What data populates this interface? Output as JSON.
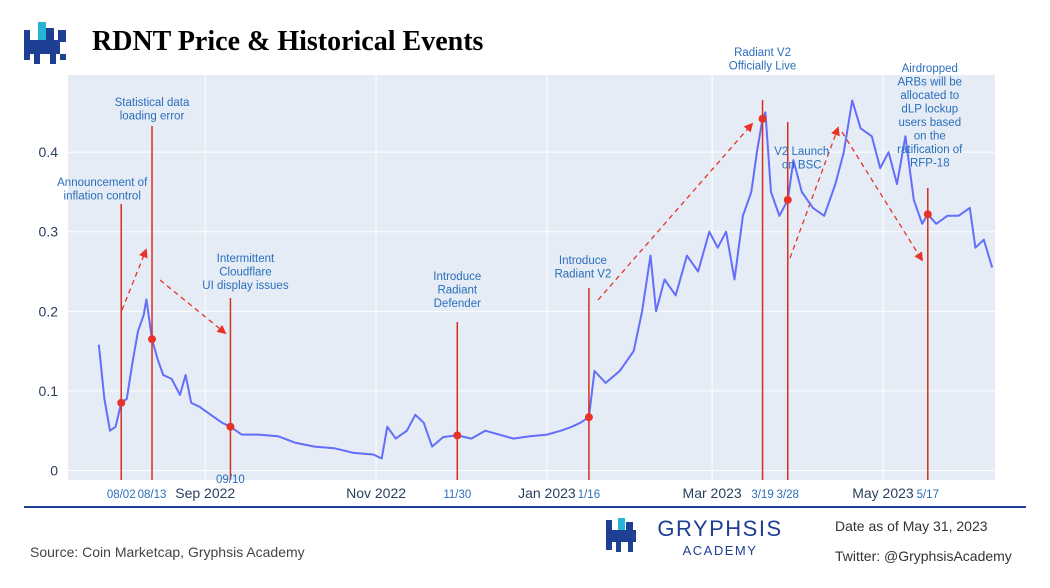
{
  "chart_data": {
    "type": "line",
    "title": "RDNT Price & Historical Events",
    "color": "#636efa",
    "x": [
      "2022-07-25",
      "2022-07-27",
      "2022-07-29",
      "2022-07-31",
      "2022-08-02",
      "2022-08-04",
      "2022-08-06",
      "2022-08-08",
      "2022-08-10",
      "2022-08-11",
      "2022-08-13",
      "2022-08-15",
      "2022-08-17",
      "2022-08-20",
      "2022-08-23",
      "2022-08-25",
      "2022-08-27",
      "2022-08-30",
      "2022-09-03",
      "2022-09-07",
      "2022-09-10",
      "2022-09-14",
      "2022-09-20",
      "2022-09-27",
      "2022-10-03",
      "2022-10-10",
      "2022-10-17",
      "2022-10-24",
      "2022-10-31",
      "2022-11-03",
      "2022-11-05",
      "2022-11-08",
      "2022-11-12",
      "2022-11-15",
      "2022-11-18",
      "2022-11-21",
      "2022-11-25",
      "2022-11-30",
      "2022-12-05",
      "2022-12-10",
      "2022-12-15",
      "2022-12-20",
      "2022-12-26",
      "2023-01-01",
      "2023-01-06",
      "2023-01-10",
      "2023-01-13",
      "2023-01-16",
      "2023-01-18",
      "2023-01-22",
      "2023-01-27",
      "2023-02-01",
      "2023-02-04",
      "2023-02-07",
      "2023-02-09",
      "2023-02-12",
      "2023-02-16",
      "2023-02-20",
      "2023-02-24",
      "2023-02-28",
      "2023-03-03",
      "2023-03-06",
      "2023-03-09",
      "2023-03-12",
      "2023-03-15",
      "2023-03-17",
      "2023-03-19",
      "2023-03-20",
      "2023-03-22",
      "2023-03-25",
      "2023-03-28",
      "2023-03-30",
      "2023-04-02",
      "2023-04-06",
      "2023-04-10",
      "2023-04-14",
      "2023-04-17",
      "2023-04-20",
      "2023-04-23",
      "2023-04-27",
      "2023-04-30",
      "2023-05-03",
      "2023-05-06",
      "2023-05-09",
      "2023-05-12",
      "2023-05-15",
      "2023-05-17",
      "2023-05-20",
      "2023-05-24",
      "2023-05-28",
      "2023-06-01",
      "2023-06-03",
      "2023-06-06",
      "2023-06-09"
    ],
    "values": [
      0.158,
      0.09,
      0.05,
      0.055,
      0.085,
      0.09,
      0.135,
      0.175,
      0.195,
      0.215,
      0.165,
      0.14,
      0.12,
      0.115,
      0.095,
      0.12,
      0.085,
      0.08,
      0.07,
      0.06,
      0.055,
      0.045,
      0.045,
      0.043,
      0.035,
      0.03,
      0.028,
      0.022,
      0.02,
      0.015,
      0.055,
      0.04,
      0.05,
      0.07,
      0.06,
      0.03,
      0.042,
      0.044,
      0.04,
      0.05,
      0.045,
      0.04,
      0.043,
      0.045,
      0.05,
      0.055,
      0.06,
      0.067,
      0.125,
      0.11,
      0.125,
      0.15,
      0.2,
      0.27,
      0.2,
      0.24,
      0.22,
      0.27,
      0.25,
      0.3,
      0.28,
      0.3,
      0.24,
      0.32,
      0.35,
      0.4,
      0.442,
      0.45,
      0.35,
      0.32,
      0.34,
      0.39,
      0.35,
      0.33,
      0.32,
      0.36,
      0.4,
      0.465,
      0.43,
      0.42,
      0.38,
      0.4,
      0.36,
      0.42,
      0.34,
      0.31,
      0.322,
      0.31,
      0.32,
      0.32,
      0.33,
      0.28,
      0.29,
      0.255
    ],
    "xlim": [
      "2022-07-14",
      "2023-06-10"
    ],
    "xticks": [
      {
        "value": "2022-09-01",
        "label": "Sep 2022"
      },
      {
        "value": "2022-11-01",
        "label": "Nov 2022"
      },
      {
        "value": "2023-01-01",
        "label": "Jan 2023"
      },
      {
        "value": "2023-03-01",
        "label": "Mar 2023"
      },
      {
        "value": "2023-05-01",
        "label": "May 2023"
      }
    ],
    "ylim": [
      -0.012,
      0.497
    ],
    "yticks": [
      0,
      0.1,
      0.2,
      0.3,
      0.4
    ],
    "grid": true,
    "events": [
      {
        "date": "2022-08-02",
        "date_label": "08/02",
        "value": 0.085,
        "text": [
          "Announcement of",
          "inflation control"
        ]
      },
      {
        "date": "2022-08-13",
        "date_label": "08/13",
        "value": 0.165,
        "text": [
          "Statistical data",
          "loading error"
        ]
      },
      {
        "date": "2022-09-10",
        "date_label": "09/10",
        "value": 0.055,
        "text": [
          "Intermittent",
          "Cloudflare",
          "UI display issues"
        ]
      },
      {
        "date": "2022-11-30",
        "date_label": "11/30",
        "value": 0.044,
        "text": [
          "Introduce",
          "Radiant",
          "Defender"
        ]
      },
      {
        "date": "2023-01-16",
        "date_label": "1/16",
        "value": 0.067,
        "text": [
          "Introduce",
          "Radiant V2"
        ]
      },
      {
        "date": "2023-03-19",
        "date_label": "3/19",
        "value": 0.442,
        "text": [
          "Radiant V2",
          "Officially Live"
        ]
      },
      {
        "date": "2023-03-28",
        "date_label": "3/28",
        "value": 0.34,
        "text": [
          "V2 Launch",
          "on BSC"
        ]
      },
      {
        "date": "2023-05-17",
        "date_label": "5/17",
        "value": 0.322,
        "text": [
          "Airdropped",
          "ARBs will be",
          "allocated to",
          "dLP lockup",
          "users based",
          "on the",
          "ratification of",
          "RFP-18"
        ]
      }
    ]
  },
  "footer": {
    "source": "Source: Coin Marketcap, Gryphsis Academy",
    "brand": "GRYPHSIS",
    "brand_sub": "ACADEMY",
    "date_note": "Date as of May 31, 2023",
    "twitter": "Twitter: @GryphsisAcademy"
  }
}
